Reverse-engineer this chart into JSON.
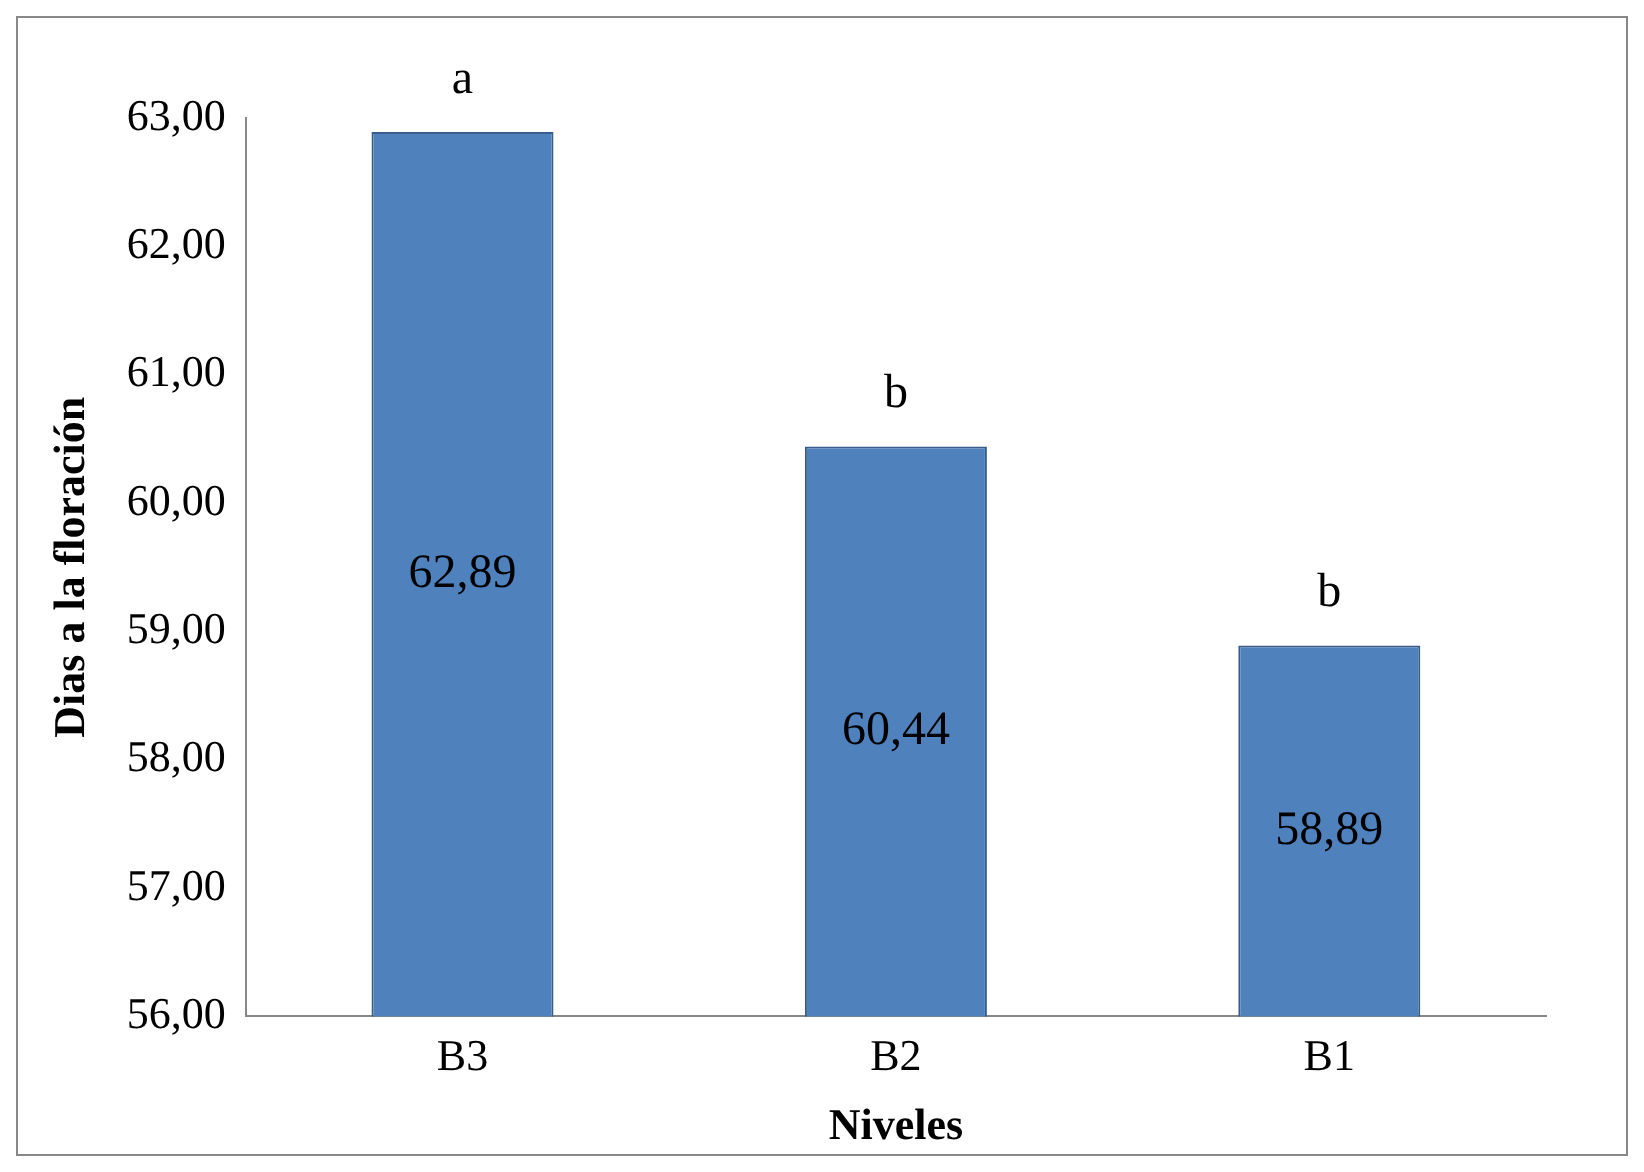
{
  "chart_data": {
    "type": "bar",
    "xlabel": "Niveles",
    "ylabel": "Dias a la floración",
    "categories": [
      "B3",
      "B2",
      "B1"
    ],
    "values": [
      62.89,
      60.44,
      58.89
    ],
    "value_labels": [
      "62,89",
      "60,44",
      "58,89"
    ],
    "color": "#4f81bd",
    "ylim": [
      56,
      63
    ],
    "yticks": [
      {
        "value": 56,
        "label": "56,00"
      },
      {
        "value": 57,
        "label": "57,00"
      },
      {
        "value": 58,
        "label": "58,00"
      },
      {
        "value": 59,
        "label": "59,00"
      },
      {
        "value": 60,
        "label": "60,00"
      },
      {
        "value": 61,
        "label": "61,00"
      },
      {
        "value": 62,
        "label": "62,00"
      },
      {
        "value": 63,
        "label": "63,00"
      }
    ],
    "annotations": [
      {
        "text": "a",
        "x": "B3",
        "y": 62.89
      },
      {
        "text": "b",
        "x": "B2",
        "y": 60.44
      },
      {
        "text": "b",
        "x": "B1",
        "y": 58.89
      }
    ],
    "grid": false,
    "legend": false
  }
}
